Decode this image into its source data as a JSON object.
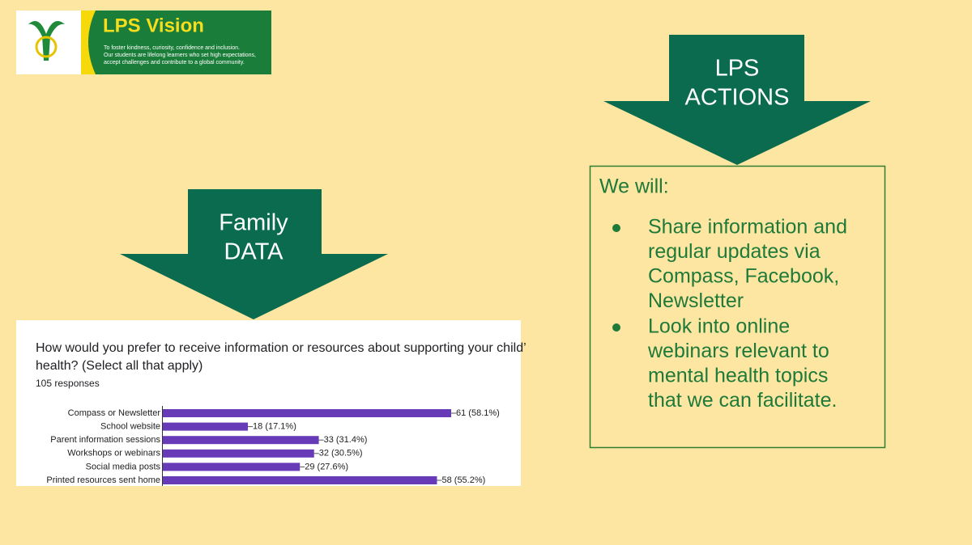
{
  "banner": {
    "title": "LPS Vision",
    "lines": [
      "To foster kindness, curiosity, confidence and inclusion.",
      "Our students are lifelong learners who set high expectations,",
      "accept challenges and contribute to a global community."
    ]
  },
  "left_arrow": {
    "lines": [
      "Family",
      "DATA"
    ]
  },
  "right_arrow": {
    "lines": [
      "LPS",
      "ACTIONS"
    ]
  },
  "chart": {
    "type": "bar",
    "title_lines": [
      "How would you prefer to receive information or resources about supporting your child’",
      "health? (Select all that apply)"
    ],
    "subtitle": "105 responses",
    "categories": [
      "Compass or Newsletter",
      "School website",
      "Parent information sessions",
      "Workshops or webinars",
      "Social media posts",
      "Printed resources sent home"
    ],
    "values": [
      61,
      18,
      33,
      32,
      29,
      58
    ],
    "value_labels": [
      "61 (58.1%)",
      "18 (17.1%)",
      "33 (31.4%)",
      "32 (30.5%)",
      "29 (27.6%)",
      "58 (55.2%)"
    ],
    "color": "#673ab7"
  },
  "actions": {
    "heading": "We will:",
    "items": [
      [
        "Share information and",
        "regular updates via",
        "Compass, Facebook,",
        "Newsletter"
      ],
      [
        "Look into online",
        "webinars relevant to",
        "mental health topics",
        "that we can facilitate."
      ]
    ]
  }
}
